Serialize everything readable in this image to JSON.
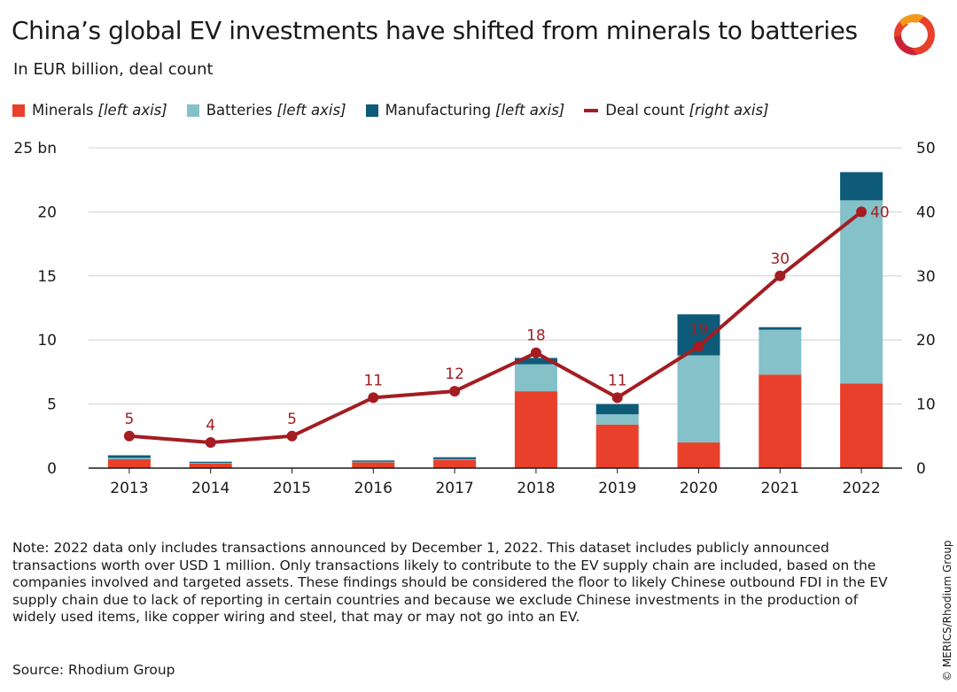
{
  "title": "China’s global EV investments have shifted from minerals to batteries",
  "subtitle": "In EUR billion, deal count",
  "legend": [
    {
      "label": "Minerals",
      "note": "[left axis]",
      "color": "#e8402a",
      "kind": "box"
    },
    {
      "label": "Batteries",
      "note": "[left axis]",
      "color": "#84c1c9",
      "kind": "box"
    },
    {
      "label": "Manufacturing",
      "note": "[left axis]",
      "color": "#0d5b78",
      "kind": "box"
    },
    {
      "label": "Deal count",
      "note": "[right axis]",
      "color": "#a31d22",
      "kind": "line"
    }
  ],
  "note": "Note: 2022 data only includes transactions announced by December 1, 2022. This dataset includes publicly announced transactions worth over USD 1 million. Only transactions likely to contribute to the EV supply chain are included, based on the companies involved and targeted assets. These findings should be considered the floor to likely Chinese outbound FDI in the EV supply chain due to lack of reporting in certain countries and because we exclude Chinese investments in the production of widely used items, like copper wiring and steel, that may or may not go into an EV.",
  "source": "Source: Rhodium Group",
  "copyright": "© MERICS/Rhodium Group",
  "chart_data": {
    "type": "bar",
    "stacked": true,
    "categories": [
      "2013",
      "2014",
      "2015",
      "2016",
      "2017",
      "2018",
      "2019",
      "2020",
      "2021",
      "2022"
    ],
    "series": [
      {
        "name": "Minerals",
        "axis": "left",
        "color": "#e8402a",
        "values": [
          0.7,
          0.35,
          0,
          0.45,
          0.65,
          6.0,
          3.4,
          2.0,
          7.3,
          6.6
        ]
      },
      {
        "name": "Batteries",
        "axis": "left",
        "color": "#84c1c9",
        "values": [
          0.1,
          0.05,
          0,
          0.05,
          0.05,
          2.1,
          0.8,
          6.8,
          3.5,
          14.3
        ]
      },
      {
        "name": "Manufacturing",
        "axis": "left",
        "color": "#0d5b78",
        "values": [
          0.2,
          0.1,
          0,
          0.1,
          0.15,
          0.5,
          0.8,
          3.2,
          0.2,
          2.2
        ]
      }
    ],
    "line_series": {
      "name": "Deal count",
      "axis": "right",
      "color": "#a31d22",
      "values": [
        5,
        4,
        5,
        11,
        12,
        18,
        11,
        19,
        30,
        40
      ],
      "labels": [
        "5",
        "4",
        "5",
        "11",
        "12",
        "18",
        "11",
        "19",
        "30",
        "40"
      ]
    },
    "y_left": {
      "ylim": [
        0,
        25
      ],
      "ticks": [
        0,
        5,
        10,
        15,
        20,
        25
      ],
      "tick_labels": [
        "0",
        "5",
        "10",
        "15",
        "20",
        "25 bn"
      ]
    },
    "y_right": {
      "ylim": [
        0,
        50
      ],
      "ticks": [
        0,
        10,
        20,
        30,
        40,
        50
      ],
      "tick_labels": [
        "0",
        "10",
        "20",
        "30",
        "40",
        "50"
      ]
    },
    "grid": true,
    "legend_position": "top-left"
  }
}
